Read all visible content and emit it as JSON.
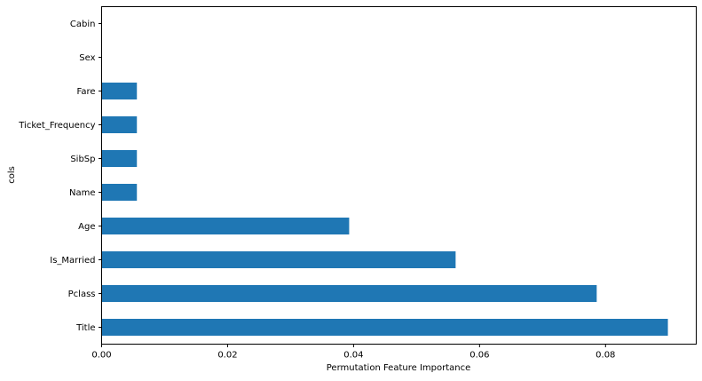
{
  "chart_data": {
    "type": "bar",
    "orientation": "horizontal",
    "categories": [
      "Title",
      "Pclass",
      "Is_Married",
      "Age",
      "Name",
      "SibSp",
      "Ticket_Frequency",
      "Fare",
      "Sex",
      "Cabin"
    ],
    "values": [
      0.0899,
      0.0786,
      0.0562,
      0.0393,
      0.0056,
      0.0056,
      0.0056,
      0.0056,
      0.0,
      0.0
    ],
    "xlabel": "Permutation Feature Importance",
    "ylabel": "cols",
    "xlim": [
      0,
      0.0944
    ],
    "xticks": [
      "0.00",
      "0.02",
      "0.04",
      "0.06",
      "0.08"
    ],
    "xtick_values": [
      0,
      0.02,
      0.04,
      0.06,
      0.08
    ],
    "bar_color": "#1f77b4",
    "grid": false,
    "legend": "none"
  }
}
